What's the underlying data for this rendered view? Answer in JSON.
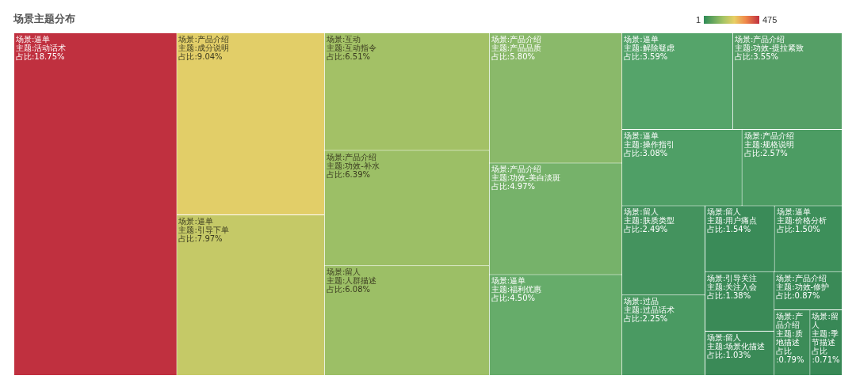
{
  "chart_data": {
    "type": "other",
    "title": "场景主题分布",
    "annotations": [
      "1",
      "475"
    ],
    "categories": [
      "主题:活动话术",
      "主题:引导下单",
      "主题:福利优惠",
      "主题:解除疑虑",
      "主题:操作指引",
      "主题:价格分析",
      "主题:成分说明",
      "主题:功效-补水",
      "主题:产品品质",
      "主题:功效-美白淡斑",
      "主题:功效-提拉紧致",
      "主题:规格说明",
      "主题:功效-修护",
      "主题:质地描述",
      "主题:人群描述",
      "主题:肤质类型",
      "主题:用户痛点",
      "主题:场景化描述",
      "主题:季节描述",
      "主题:互动指令",
      "主题:过品话术",
      "主题:关注入会"
    ],
    "series": [
      {
        "name": "场景:逼单",
        "values": [
          18.75,
          7.97,
          4.5,
          3.59,
          3.08,
          1.5,
          null,
          null,
          null,
          null,
          null,
          null,
          null,
          null,
          null,
          null,
          null,
          null,
          null,
          null,
          null,
          null
        ],
        "value_labels": [
          "占比:18.75%",
          "占比:7.97%",
          "占比:4.50%",
          "占比:3.59%",
          "占比:3.08%",
          "占比:1.50%",
          null,
          null,
          null,
          null,
          null,
          null,
          null,
          null,
          null,
          null,
          null,
          null,
          null,
          null,
          null,
          null
        ],
        "colors": [
          "#c0303f",
          "#c5c967",
          "#66ac6a",
          "#55a46a",
          "#4f9f66",
          "#3d8f5a",
          null,
          null,
          null,
          null,
          null,
          null,
          null,
          null,
          null,
          null,
          null,
          null,
          null,
          null,
          null,
          null
        ]
      },
      {
        "name": "场景:产品介绍",
        "values": [
          null,
          null,
          null,
          null,
          null,
          null,
          9.04,
          6.39,
          5.8,
          4.97,
          3.55,
          2.57,
          0.87,
          0.79,
          null,
          null,
          null,
          null,
          null,
          null,
          null,
          null
        ],
        "value_labels": [
          null,
          null,
          null,
          null,
          null,
          null,
          "占比:9.04%",
          "占比:6.39%",
          "占比:5.80%",
          "占比:4.97%",
          "占比:3.55%",
          "占比:2.57%",
          "占比:0.87%",
          "占比:0.79%",
          null,
          null,
          null,
          null,
          null,
          null,
          null,
          null
        ],
        "colors": [
          null,
          null,
          null,
          null,
          null,
          null,
          "#e2ce68",
          "#9cbf66",
          "#8ab96a",
          "#76b26a",
          "#559f66",
          "#4c9c63",
          "#3a8a57",
          "#3c8c58",
          null,
          null,
          null,
          null,
          null,
          null,
          null,
          null
        ]
      },
      {
        "name": "场景:留人",
        "values": [
          null,
          null,
          null,
          null,
          null,
          null,
          null,
          null,
          null,
          null,
          null,
          null,
          null,
          null,
          6.08,
          2.49,
          1.54,
          1.03,
          0.71,
          null,
          null,
          null
        ],
        "value_labels": [
          null,
          null,
          null,
          null,
          null,
          null,
          null,
          null,
          null,
          null,
          null,
          null,
          null,
          null,
          "占比:6.08%",
          "占比:2.49%",
          "占比:1.54%",
          "占比:1.03%",
          "占比:0.71%",
          null,
          null,
          null
        ],
        "colors": [
          null,
          null,
          null,
          null,
          null,
          null,
          null,
          null,
          null,
          null,
          null,
          null,
          null,
          null,
          "#9cbf66",
          "#44935e",
          "#3a8b58",
          "#3a8a57",
          "#388856",
          null,
          null,
          null
        ]
      },
      {
        "name": "场景:互动",
        "values": [
          null,
          null,
          null,
          null,
          null,
          null,
          null,
          null,
          null,
          null,
          null,
          null,
          null,
          null,
          null,
          null,
          null,
          null,
          null,
          6.51,
          null,
          null
        ],
        "value_labels": [
          null,
          null,
          null,
          null,
          null,
          null,
          null,
          null,
          null,
          null,
          null,
          null,
          null,
          null,
          null,
          null,
          null,
          null,
          null,
          "占比:6.51%",
          null,
          null
        ],
        "colors": [
          null,
          null,
          null,
          null,
          null,
          null,
          null,
          null,
          null,
          null,
          null,
          null,
          null,
          null,
          null,
          null,
          null,
          null,
          null,
          "#a3c166",
          null,
          null
        ]
      },
      {
        "name": "场景:过品",
        "values": [
          null,
          null,
          null,
          null,
          null,
          null,
          null,
          null,
          null,
          null,
          null,
          null,
          null,
          null,
          null,
          null,
          null,
          null,
          null,
          null,
          2.25,
          null
        ],
        "value_labels": [
          null,
          null,
          null,
          null,
          null,
          null,
          null,
          null,
          null,
          null,
          null,
          null,
          null,
          null,
          null,
          null,
          null,
          null,
          null,
          null,
          "占比:2.25%",
          null
        ],
        "colors": [
          null,
          null,
          null,
          null,
          null,
          null,
          null,
          null,
          null,
          null,
          null,
          null,
          null,
          null,
          null,
          null,
          null,
          null,
          null,
          null,
          "#4a9a62",
          null
        ]
      },
      {
        "name": "场景:引导关注",
        "values": [
          null,
          null,
          null,
          null,
          null,
          null,
          null,
          null,
          null,
          null,
          null,
          null,
          null,
          null,
          null,
          null,
          null,
          null,
          null,
          null,
          null,
          1.38
        ],
        "value_labels": [
          null,
          null,
          null,
          null,
          null,
          null,
          null,
          null,
          null,
          null,
          null,
          null,
          null,
          null,
          null,
          null,
          null,
          null,
          null,
          null,
          null,
          "占比:1.38%"
        ],
        "colors": [
          null,
          null,
          null,
          null,
          null,
          null,
          null,
          null,
          null,
          null,
          null,
          null,
          null,
          null,
          null,
          null,
          null,
          null,
          null,
          null,
          null,
          "#3a8a57"
        ]
      }
    ]
  }
}
